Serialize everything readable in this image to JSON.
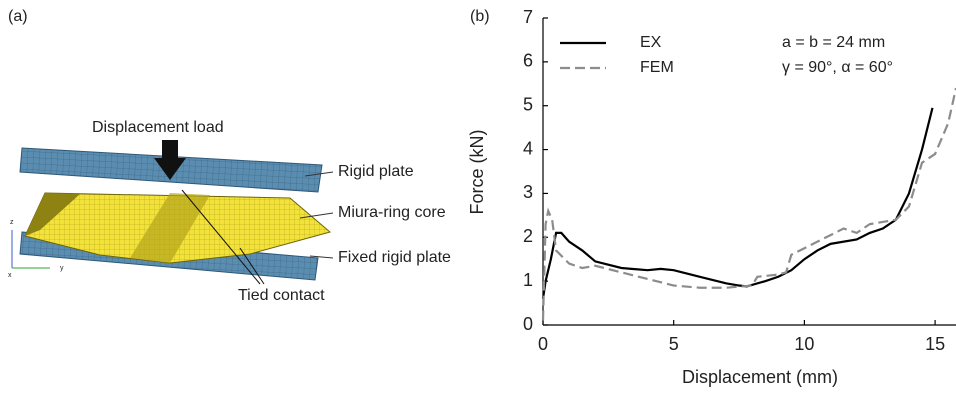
{
  "diagram": {
    "panel_label": "(a)",
    "labels": [
      "Displacement load",
      "Rigid plate",
      "Miura-ring core",
      "Fixed rigid plate",
      "Tied contact"
    ],
    "axes": [
      "z",
      "y",
      "x"
    ]
  },
  "chart_data": {
    "type": "line",
    "panel_label": "(b)",
    "xlabel": "Displacement (mm)",
    "ylabel": "Force (kN)",
    "annotations": [
      "a = b = 24 mm",
      "γ = 90°, α = 60°"
    ],
    "xlim": [
      0,
      15.8
    ],
    "xticks": [
      0,
      5,
      10,
      15
    ],
    "ylim": [
      0,
      7
    ],
    "yticks": [
      0,
      1,
      2,
      3,
      4,
      5,
      6,
      7
    ],
    "legend": "upper left",
    "series": [
      {
        "name": "EX",
        "color": "#000000",
        "dash": false,
        "x": [
          0,
          0.1,
          0.3,
          0.5,
          0.7,
          1,
          1.5,
          2,
          3,
          4,
          4.5,
          5,
          6,
          7,
          7.5,
          7.8,
          8.5,
          9,
          9.5,
          10,
          10.5,
          11,
          12,
          12.5,
          13,
          13.5,
          14,
          14.5,
          14.9
        ],
        "values": [
          0.6,
          1,
          1.5,
          2.1,
          2.1,
          1.9,
          1.7,
          1.45,
          1.3,
          1.25,
          1.28,
          1.25,
          1.1,
          0.95,
          0.9,
          0.88,
          1,
          1.1,
          1.25,
          1.5,
          1.7,
          1.85,
          1.95,
          2.1,
          2.2,
          2.4,
          3,
          4,
          4.95
        ]
      },
      {
        "name": "FEM",
        "color": "#8c8c8c",
        "dash": true,
        "x": [
          0,
          0.1,
          0.2,
          0.35,
          0.5,
          1,
          1.5,
          2,
          3,
          4,
          5,
          6,
          7,
          8,
          8.2,
          9,
          9.3,
          9.5,
          10,
          11,
          11.5,
          12,
          12.5,
          13,
          13.5,
          14,
          14.5,
          15,
          15.5,
          15.8
        ],
        "values": [
          0.1,
          2.3,
          2.6,
          2.4,
          1.7,
          1.4,
          1.3,
          1.35,
          1.2,
          1.05,
          0.9,
          0.85,
          0.85,
          0.9,
          1.1,
          1.15,
          1.2,
          1.6,
          1.75,
          2.05,
          2.2,
          2.1,
          2.3,
          2.35,
          2.4,
          2.7,
          3.7,
          3.9,
          4.6,
          5.4
        ]
      }
    ]
  }
}
